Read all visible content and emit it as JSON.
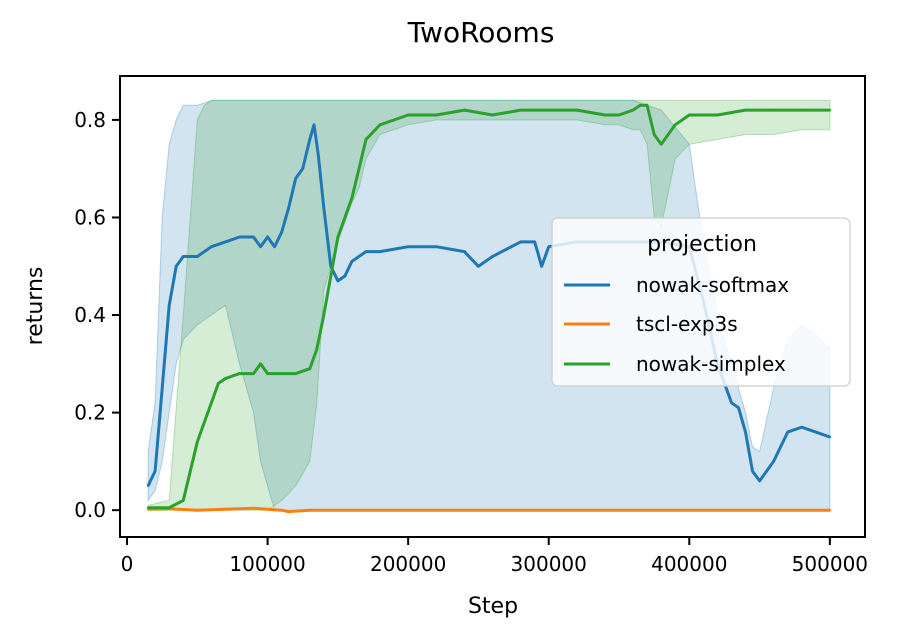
{
  "chart_data": {
    "type": "line",
    "title": "TwoRooms",
    "xlabel": "Step",
    "ylabel": "returns",
    "xlim": [
      -5000,
      525000
    ],
    "ylim": [
      -0.055,
      0.89
    ],
    "xticks": [
      0,
      100000,
      200000,
      300000,
      400000,
      500000
    ],
    "yticks": [
      0.0,
      0.2,
      0.4,
      0.6,
      0.8
    ],
    "xtick_labels": [
      "0",
      "100000",
      "200000",
      "300000",
      "400000",
      "500000"
    ],
    "ytick_labels": [
      "0.0",
      "0.2",
      "0.4",
      "0.6",
      "0.8"
    ],
    "grid": false,
    "legend": {
      "title": "projection",
      "placement": "center-right"
    },
    "series": [
      {
        "name": "nowak-softmax",
        "color": "#1f77b4",
        "band_color": "#1f77b4",
        "x": [
          15000,
          20000,
          25000,
          30000,
          35000,
          40000,
          50000,
          60000,
          70000,
          80000,
          90000,
          95000,
          100000,
          105000,
          110000,
          115000,
          120000,
          125000,
          130000,
          133000,
          136000,
          140000,
          145000,
          150000,
          155000,
          160000,
          170000,
          180000,
          200000,
          220000,
          240000,
          250000,
          260000,
          280000,
          290000,
          295000,
          300000,
          320000,
          340000,
          360000,
          380000,
          400000,
          410000,
          420000,
          430000,
          435000,
          440000,
          445000,
          450000,
          460000,
          470000,
          480000,
          490000,
          500000
        ],
        "y": [
          0.05,
          0.08,
          0.25,
          0.42,
          0.5,
          0.52,
          0.52,
          0.54,
          0.55,
          0.56,
          0.56,
          0.54,
          0.56,
          0.54,
          0.57,
          0.62,
          0.68,
          0.7,
          0.76,
          0.79,
          0.73,
          0.62,
          0.5,
          0.47,
          0.48,
          0.51,
          0.53,
          0.53,
          0.54,
          0.54,
          0.53,
          0.5,
          0.52,
          0.55,
          0.55,
          0.5,
          0.54,
          0.55,
          0.55,
          0.55,
          0.55,
          0.54,
          0.43,
          0.3,
          0.22,
          0.21,
          0.16,
          0.08,
          0.06,
          0.1,
          0.16,
          0.17,
          0.16,
          0.15
        ],
        "lower": [
          0.02,
          0.04,
          0.1,
          0.2,
          0.3,
          0.35,
          0.38,
          0.4,
          0.42,
          0.3,
          0.2,
          0.1,
          0.05,
          0.0,
          0.0,
          0.0,
          0.0,
          0.0,
          0.0,
          0.0,
          0.0,
          0.0,
          0.0,
          0.0,
          0.0,
          0.0,
          0.0,
          0.0,
          0.0,
          0.0,
          0.0,
          0.0,
          0.0,
          0.0,
          0.0,
          0.0,
          0.0,
          0.0,
          0.0,
          0.0,
          0.0,
          0.0,
          0.0,
          0.0,
          0.0,
          0.0,
          0.0,
          0.0,
          0.0,
          0.0,
          0.0,
          0.0,
          0.0,
          0.0
        ],
        "upper": [
          0.12,
          0.22,
          0.6,
          0.75,
          0.8,
          0.83,
          0.83,
          0.84,
          0.84,
          0.84,
          0.84,
          0.84,
          0.84,
          0.84,
          0.84,
          0.84,
          0.84,
          0.84,
          0.84,
          0.84,
          0.84,
          0.84,
          0.84,
          0.84,
          0.84,
          0.84,
          0.84,
          0.84,
          0.84,
          0.84,
          0.84,
          0.84,
          0.84,
          0.84,
          0.84,
          0.84,
          0.84,
          0.84,
          0.84,
          0.84,
          0.82,
          0.75,
          0.55,
          0.4,
          0.3,
          0.25,
          0.2,
          0.13,
          0.12,
          0.25,
          0.35,
          0.38,
          0.36,
          0.33
        ]
      },
      {
        "name": "tscl-exp3s",
        "color": "#ff7f0e",
        "x": [
          15000,
          30000,
          50000,
          70000,
          90000,
          100000,
          110000,
          115000,
          120000,
          130000,
          150000,
          200000,
          300000,
          400000,
          500000
        ],
        "y": [
          0.002,
          0.003,
          0.0,
          0.002,
          0.004,
          0.002,
          0.0,
          -0.003,
          -0.002,
          0.0,
          0.0,
          0.0,
          0.0,
          0.0,
          0.0
        ]
      },
      {
        "name": "nowak-simplex",
        "color": "#2ca02c",
        "band_color": "#2ca02c",
        "x": [
          15000,
          30000,
          40000,
          45000,
          50000,
          55000,
          60000,
          65000,
          70000,
          80000,
          90000,
          95000,
          100000,
          110000,
          120000,
          130000,
          135000,
          140000,
          145000,
          150000,
          160000,
          165000,
          170000,
          180000,
          200000,
          220000,
          240000,
          260000,
          280000,
          300000,
          320000,
          340000,
          350000,
          360000,
          365000,
          370000,
          375000,
          380000,
          390000,
          400000,
          420000,
          440000,
          460000,
          480000,
          500000
        ],
        "y": [
          0.005,
          0.005,
          0.02,
          0.08,
          0.14,
          0.18,
          0.22,
          0.26,
          0.27,
          0.28,
          0.28,
          0.3,
          0.28,
          0.28,
          0.28,
          0.29,
          0.33,
          0.4,
          0.48,
          0.56,
          0.64,
          0.7,
          0.76,
          0.79,
          0.81,
          0.81,
          0.82,
          0.81,
          0.82,
          0.82,
          0.82,
          0.81,
          0.81,
          0.82,
          0.83,
          0.83,
          0.77,
          0.75,
          0.79,
          0.81,
          0.81,
          0.82,
          0.82,
          0.82,
          0.82
        ],
        "lower": [
          0.0,
          0.0,
          0.0,
          0.0,
          0.0,
          0.0,
          0.0,
          0.0,
          0.0,
          0.0,
          0.0,
          0.0,
          0.0,
          0.02,
          0.05,
          0.1,
          0.22,
          0.45,
          0.5,
          0.55,
          0.63,
          0.66,
          0.72,
          0.77,
          0.79,
          0.8,
          0.8,
          0.8,
          0.8,
          0.8,
          0.8,
          0.79,
          0.79,
          0.78,
          0.78,
          0.75,
          0.6,
          0.58,
          0.72,
          0.75,
          0.76,
          0.77,
          0.77,
          0.78,
          0.78
        ],
        "upper": [
          0.01,
          0.02,
          0.4,
          0.6,
          0.8,
          0.83,
          0.84,
          0.84,
          0.84,
          0.84,
          0.84,
          0.84,
          0.84,
          0.84,
          0.84,
          0.84,
          0.84,
          0.84,
          0.84,
          0.84,
          0.84,
          0.84,
          0.84,
          0.84,
          0.84,
          0.84,
          0.84,
          0.84,
          0.84,
          0.84,
          0.84,
          0.84,
          0.84,
          0.84,
          0.84,
          0.84,
          0.84,
          0.84,
          0.84,
          0.84,
          0.84,
          0.84,
          0.84,
          0.84,
          0.84
        ]
      }
    ]
  }
}
